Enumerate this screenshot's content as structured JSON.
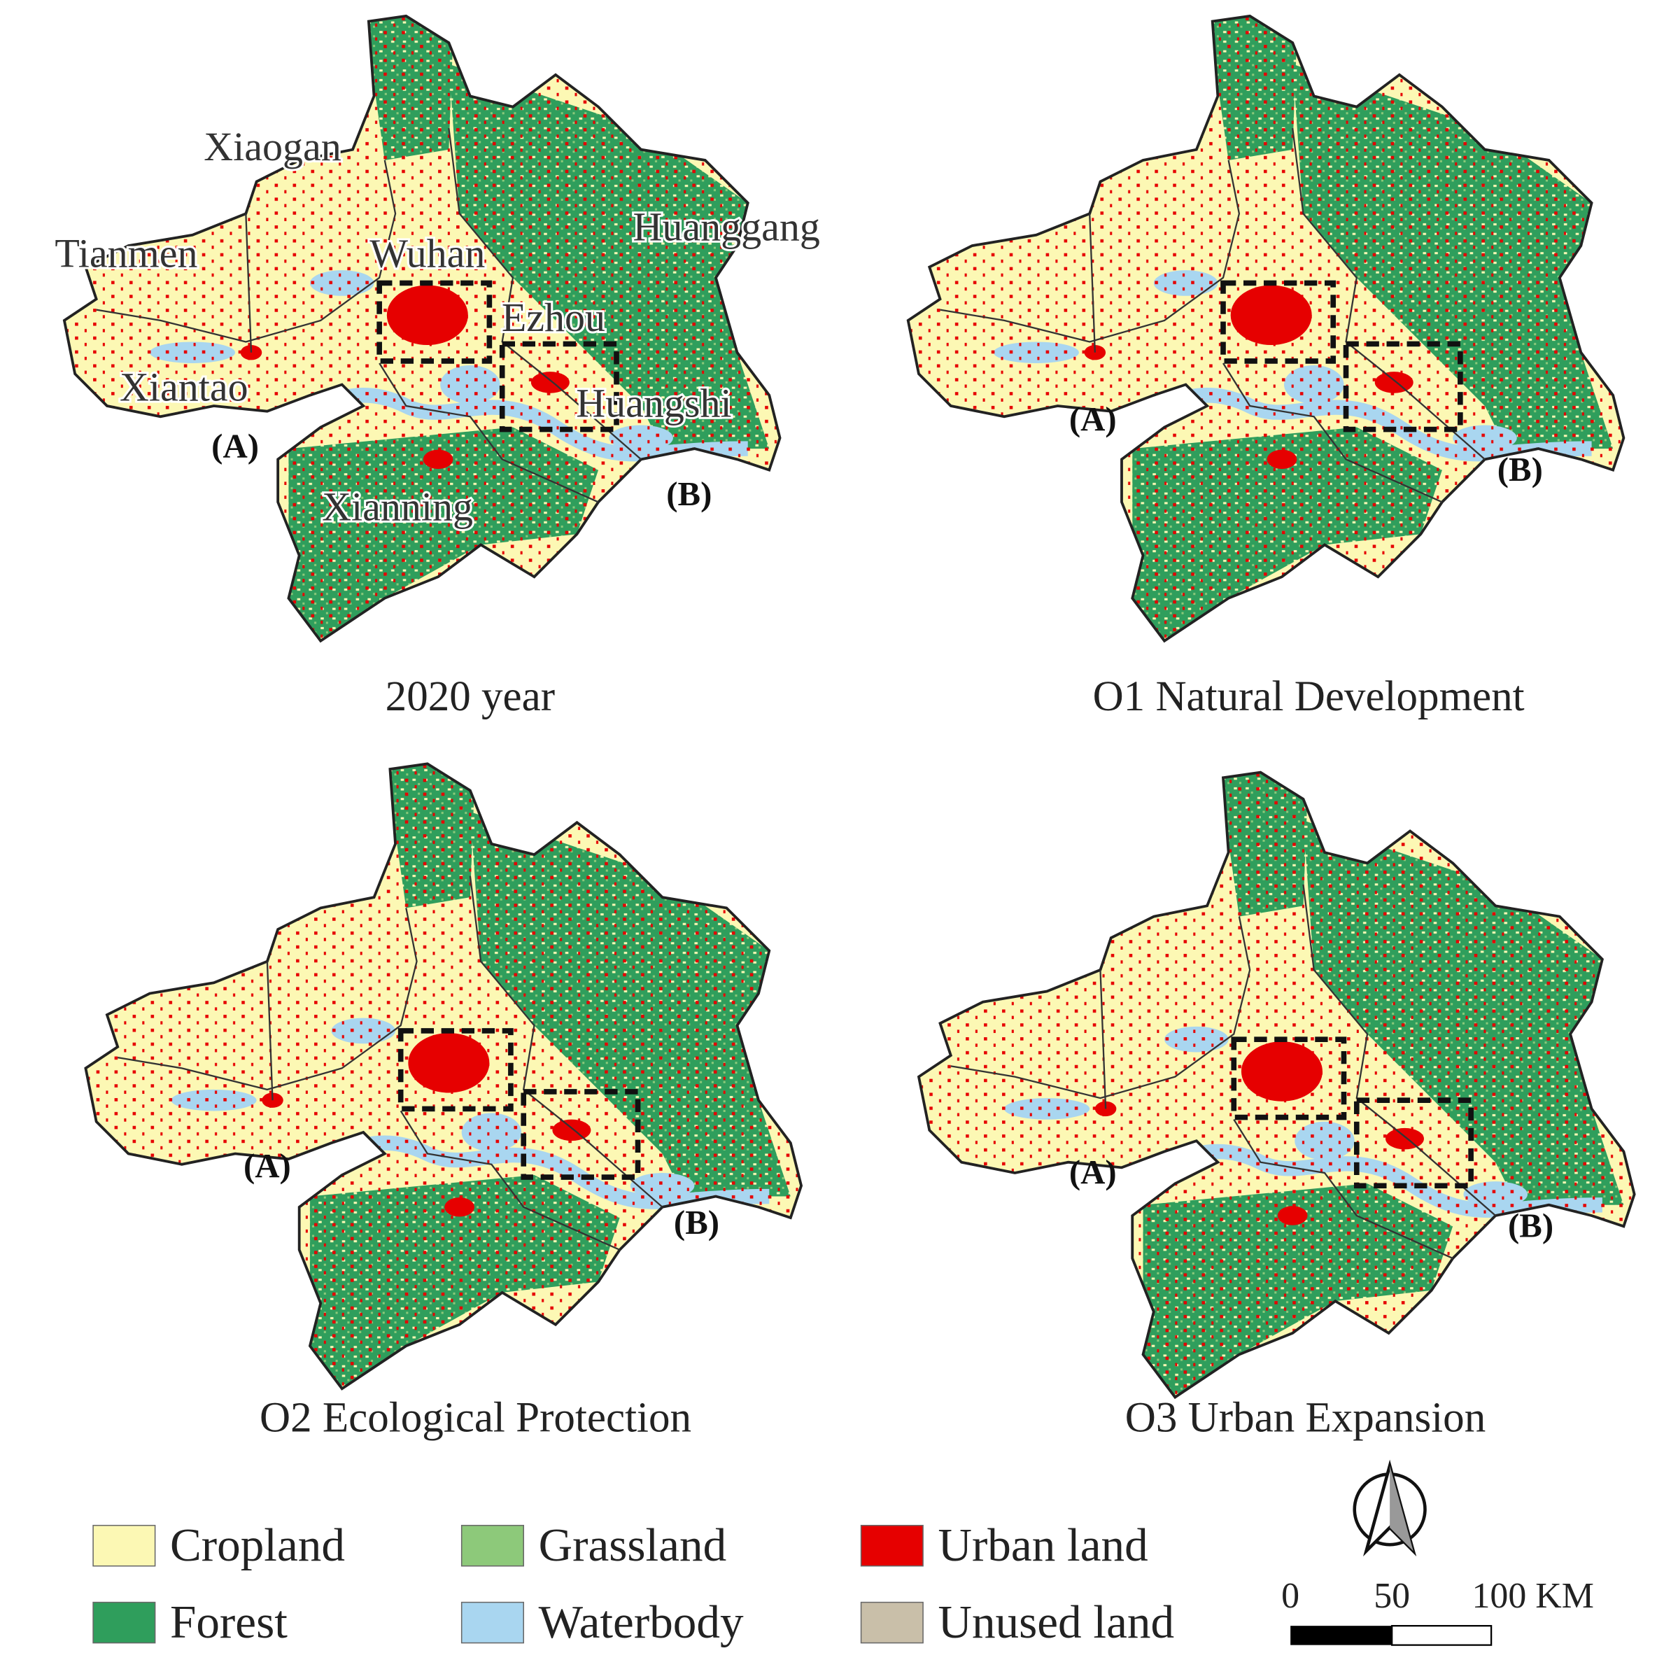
{
  "panels": [
    {
      "title": "2020 year",
      "markers": [
        "(A)",
        "(B)"
      ]
    },
    {
      "title": "O1 Natural Development",
      "markers": [
        "(A)",
        "(B)"
      ]
    },
    {
      "title": "O2 Ecological Protection",
      "markers": [
        "(A)",
        "(B)"
      ]
    },
    {
      "title": "O3 Urban Expansion",
      "markers": [
        "(A)",
        "(B)"
      ]
    }
  ],
  "city_labels": [
    "Xiaogan",
    "Tianmen",
    "Wuhan",
    "Huanggang",
    "Ezhou",
    "Xiantao",
    "Huangshi",
    "Xianning"
  ],
  "legend": [
    {
      "label": "Cropland",
      "color": "#fcf8b4"
    },
    {
      "label": "Grassland",
      "color": "#8dc97a"
    },
    {
      "label": "Urban land",
      "color": "#e60000"
    },
    {
      "label": "Forest",
      "color": "#2f9e5c"
    },
    {
      "label": "Waterbody",
      "color": "#a9d6f0"
    },
    {
      "label": "Unused land",
      "color": "#c9bfa9"
    }
  ],
  "scale_bar": {
    "labels": [
      "0",
      "50",
      "100 KM"
    ]
  }
}
